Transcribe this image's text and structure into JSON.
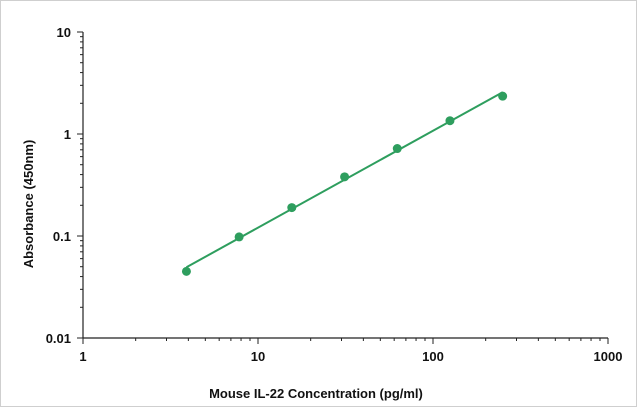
{
  "chart_data": {
    "type": "scatter",
    "title": "",
    "xlabel": "Mouse IL-22 Concentration (pg/ml)",
    "ylabel": "Absorbance (450nm)",
    "xscale": "log",
    "yscale": "log",
    "xlim": [
      1,
      1000
    ],
    "ylim": [
      0.01,
      10
    ],
    "xticks": [
      "1",
      "10",
      "100",
      "1000"
    ],
    "yticks": [
      "10",
      "1",
      "0.1",
      "0.01"
    ],
    "grid": false,
    "legend": "none",
    "series": [
      {
        "x": [
          3.9,
          7.8,
          15.6,
          31.25,
          62.5,
          125,
          250
        ],
        "y": [
          0.045,
          0.098,
          0.19,
          0.38,
          0.72,
          1.35,
          2.35
        ],
        "color": "#2e9e5e",
        "fit": "power-law trendline"
      }
    ]
  }
}
